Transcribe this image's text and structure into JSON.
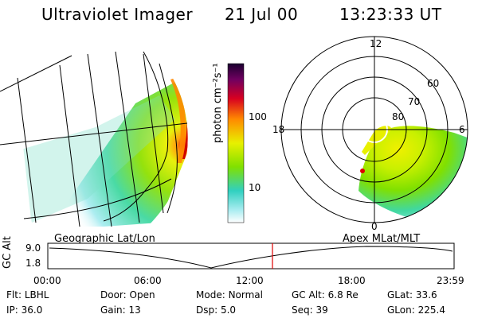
{
  "header": {
    "instrument": "Ultraviolet Imager",
    "date": "21 Jul 00",
    "time": "13:23:33 UT"
  },
  "colorbar": {
    "label": "photon cm⁻²s⁻¹",
    "ticks": [
      "100",
      "10"
    ]
  },
  "polar": {
    "lat_labels": [
      "60",
      "70",
      "80"
    ],
    "mlt_labels": {
      "top": "12",
      "left": "18",
      "right": "6",
      "bottom": "0"
    }
  },
  "panel_labels": {
    "left": "Geographic Lat/Lon",
    "right": "Apex MLat/MLT"
  },
  "altitude_plot": {
    "axis_label": "GC Alt",
    "ticks": [
      "9.0",
      "1.8"
    ],
    "time_ticks": [
      "00:00",
      "06:00",
      "12:00",
      "18:00",
      "23:59"
    ],
    "marker_color": "#e00000"
  },
  "info": {
    "row1": [
      {
        "key": "Flt:",
        "val": "LBHL"
      },
      {
        "key": "Door:",
        "val": "Open"
      },
      {
        "key": "Mode:",
        "val": "Normal"
      },
      {
        "key": "GC Alt:",
        "val": "6.8 Re"
      },
      {
        "key": "GLat:",
        "val": "33.6"
      }
    ],
    "row2": [
      {
        "key": "IP:",
        "val": "36.0"
      },
      {
        "key": "Gain:",
        "val": "13"
      },
      {
        "key": "Dsp:",
        "val": "5.0"
      },
      {
        "key": "Seq:",
        "val": "39"
      },
      {
        "key": "GLon:",
        "val": "225.4"
      }
    ]
  }
}
